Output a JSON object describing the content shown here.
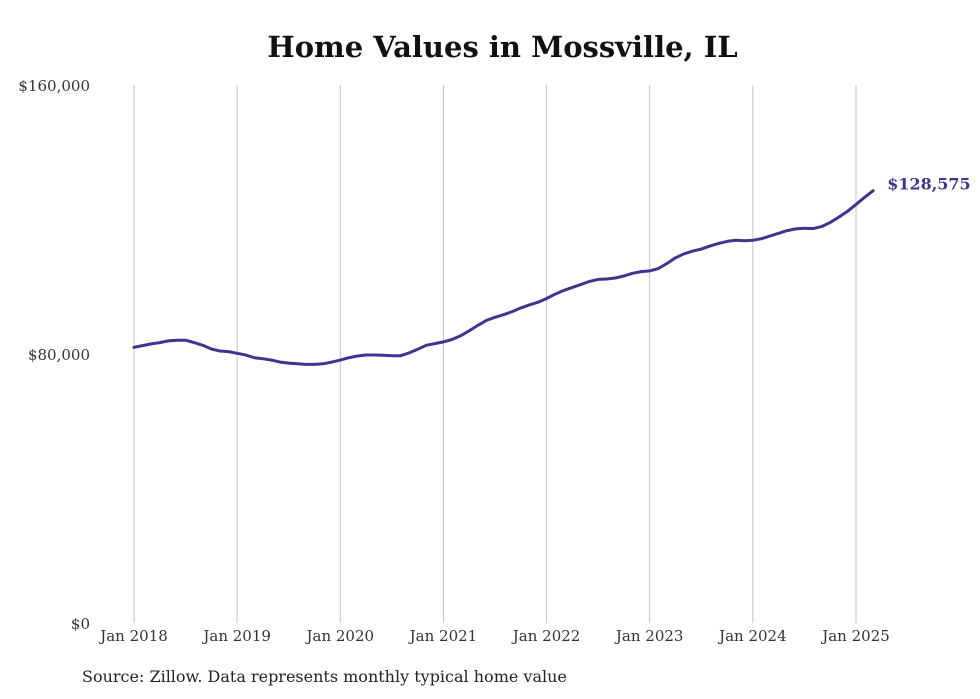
{
  "chart_data": {
    "type": "line",
    "title": "Home Values in Mossville, IL",
    "xlabel": "",
    "ylabel": "",
    "ylim": [
      0,
      160000
    ],
    "yticks": [
      {
        "value": 0,
        "label": "$0"
      },
      {
        "value": 80000,
        "label": "$80,000"
      },
      {
        "value": 160000,
        "label": "$160,000"
      }
    ],
    "xticks": [
      {
        "value": "2018-01",
        "label": "Jan 2018"
      },
      {
        "value": "2019-01",
        "label": "Jan 2019"
      },
      {
        "value": "2020-01",
        "label": "Jan 2020"
      },
      {
        "value": "2021-01",
        "label": "Jan 2021"
      },
      {
        "value": "2022-01",
        "label": "Jan 2022"
      },
      {
        "value": "2023-01",
        "label": "Jan 2023"
      },
      {
        "value": "2024-01",
        "label": "Jan 2024"
      },
      {
        "value": "2025-01",
        "label": "Jan 2025"
      }
    ],
    "grid": "vertical",
    "legend": "none",
    "series": [
      {
        "color": "#3d3590",
        "end_label": "$128,575",
        "points": [
          {
            "x": "2018-01",
            "y": 82000
          },
          {
            "x": "2018-02",
            "y": 82500
          },
          {
            "x": "2018-03",
            "y": 83000
          },
          {
            "x": "2018-04",
            "y": 83400
          },
          {
            "x": "2018-05",
            "y": 83900
          },
          {
            "x": "2018-06",
            "y": 84100
          },
          {
            "x": "2018-07",
            "y": 84100
          },
          {
            "x": "2018-08",
            "y": 83400
          },
          {
            "x": "2018-09",
            "y": 82600
          },
          {
            "x": "2018-10",
            "y": 81500
          },
          {
            "x": "2018-11",
            "y": 80900
          },
          {
            "x": "2018-12",
            "y": 80700
          },
          {
            "x": "2019-01",
            "y": 80200
          },
          {
            "x": "2019-02",
            "y": 79700
          },
          {
            "x": "2019-03",
            "y": 78900
          },
          {
            "x": "2019-04",
            "y": 78600
          },
          {
            "x": "2019-05",
            "y": 78200
          },
          {
            "x": "2019-06",
            "y": 77600
          },
          {
            "x": "2019-07",
            "y": 77300
          },
          {
            "x": "2019-08",
            "y": 77100
          },
          {
            "x": "2019-09",
            "y": 76900
          },
          {
            "x": "2019-10",
            "y": 76900
          },
          {
            "x": "2019-11",
            "y": 77100
          },
          {
            "x": "2019-12",
            "y": 77600
          },
          {
            "x": "2020-01",
            "y": 78200
          },
          {
            "x": "2020-02",
            "y": 78900
          },
          {
            "x": "2020-03",
            "y": 79400
          },
          {
            "x": "2020-04",
            "y": 79700
          },
          {
            "x": "2020-05",
            "y": 79700
          },
          {
            "x": "2020-06",
            "y": 79600
          },
          {
            "x": "2020-07",
            "y": 79500
          },
          {
            "x": "2020-08",
            "y": 79500
          },
          {
            "x": "2020-09",
            "y": 80300
          },
          {
            "x": "2020-10",
            "y": 81400
          },
          {
            "x": "2020-11",
            "y": 82600
          },
          {
            "x": "2020-12",
            "y": 83100
          },
          {
            "x": "2021-01",
            "y": 83600
          },
          {
            "x": "2021-02",
            "y": 84300
          },
          {
            "x": "2021-03",
            "y": 85400
          },
          {
            "x": "2021-04",
            "y": 86900
          },
          {
            "x": "2021-05",
            "y": 88500
          },
          {
            "x": "2021-06",
            "y": 90000
          },
          {
            "x": "2021-07",
            "y": 90900
          },
          {
            "x": "2021-08",
            "y": 91700
          },
          {
            "x": "2021-09",
            "y": 92600
          },
          {
            "x": "2021-10",
            "y": 93700
          },
          {
            "x": "2021-11",
            "y": 94600
          },
          {
            "x": "2021-12",
            "y": 95400
          },
          {
            "x": "2022-01",
            "y": 96500
          },
          {
            "x": "2022-02",
            "y": 97800
          },
          {
            "x": "2022-03",
            "y": 98900
          },
          {
            "x": "2022-04",
            "y": 99800
          },
          {
            "x": "2022-05",
            "y": 100700
          },
          {
            "x": "2022-06",
            "y": 101600
          },
          {
            "x": "2022-07",
            "y": 102200
          },
          {
            "x": "2022-08",
            "y": 102300
          },
          {
            "x": "2022-09",
            "y": 102600
          },
          {
            "x": "2022-10",
            "y": 103200
          },
          {
            "x": "2022-11",
            "y": 104000
          },
          {
            "x": "2022-12",
            "y": 104500
          },
          {
            "x": "2023-01",
            "y": 104700
          },
          {
            "x": "2023-02",
            "y": 105400
          },
          {
            "x": "2023-03",
            "y": 106900
          },
          {
            "x": "2023-04",
            "y": 108600
          },
          {
            "x": "2023-05",
            "y": 109800
          },
          {
            "x": "2023-06",
            "y": 110600
          },
          {
            "x": "2023-07",
            "y": 111200
          },
          {
            "x": "2023-08",
            "y": 112100
          },
          {
            "x": "2023-09",
            "y": 112900
          },
          {
            "x": "2023-10",
            "y": 113500
          },
          {
            "x": "2023-11",
            "y": 113800
          },
          {
            "x": "2023-12",
            "y": 113700
          },
          {
            "x": "2024-01",
            "y": 113800
          },
          {
            "x": "2024-02",
            "y": 114300
          },
          {
            "x": "2024-03",
            "y": 115100
          },
          {
            "x": "2024-04",
            "y": 115900
          },
          {
            "x": "2024-05",
            "y": 116700
          },
          {
            "x": "2024-06",
            "y": 117200
          },
          {
            "x": "2024-07",
            "y": 117400
          },
          {
            "x": "2024-08",
            "y": 117300
          },
          {
            "x": "2024-09",
            "y": 117900
          },
          {
            "x": "2024-10",
            "y": 119100
          },
          {
            "x": "2024-11",
            "y": 120700
          },
          {
            "x": "2024-12",
            "y": 122400
          },
          {
            "x": "2025-01",
            "y": 124500
          },
          {
            "x": "2025-02",
            "y": 126600
          },
          {
            "x": "2025-03",
            "y": 128575
          }
        ]
      }
    ]
  },
  "footer": {
    "source": "Source: Zillow. Data represents monthly typical home value"
  }
}
